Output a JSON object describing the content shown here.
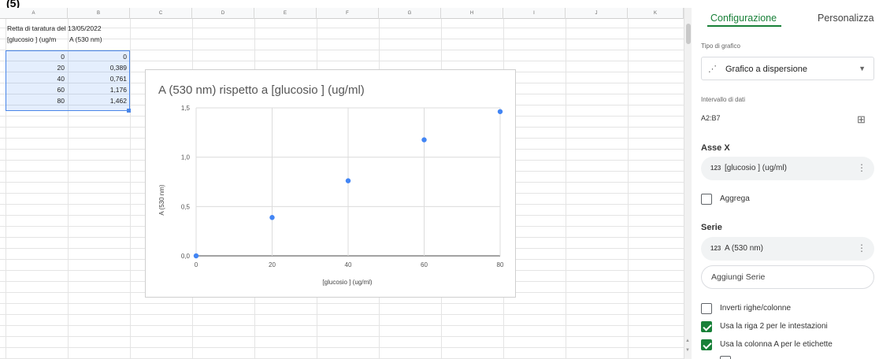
{
  "top_stub": "(5)",
  "sheet": {
    "columns": [
      "A",
      "B",
      "C",
      "D",
      "E",
      "F",
      "G",
      "H",
      "I",
      "J",
      "K"
    ],
    "title_cell": "Retta di taratura del 13/05/2022",
    "header_a": "[glucosio ] (ug/m",
    "header_b": "A (530 nm)",
    "rows": [
      {
        "a": "0",
        "b": "0"
      },
      {
        "a": "20",
        "b": "0,389"
      },
      {
        "a": "40",
        "b": "0,761"
      },
      {
        "a": "60",
        "b": "1,176"
      },
      {
        "a": "80",
        "b": "1,462"
      }
    ]
  },
  "chart_data": {
    "type": "scatter",
    "title": "A (530 nm) rispetto a [glucosio ] (ug/ml)",
    "xlabel": "[glucosio ] (ug/ml)",
    "ylabel": "A (530 nm)",
    "x": [
      0,
      20,
      40,
      60,
      80
    ],
    "y": [
      0,
      0.389,
      0.761,
      1.176,
      1.462
    ],
    "xlim": [
      0,
      80
    ],
    "ylim": [
      0,
      1.5
    ],
    "xticks": [
      "0",
      "20",
      "40",
      "60",
      "80"
    ],
    "yticks": [
      "0,0",
      "0,5",
      "1,0",
      "1,5"
    ],
    "grid": true,
    "point_color": "#4285f4"
  },
  "panel": {
    "tab_setup": "Configurazione",
    "tab_customize": "Personalizza",
    "chart_type_label": "Tipo di grafico",
    "chart_type_value": "Grafico a dispersione",
    "data_range_label": "Intervallo di dati",
    "data_range_value": "A2:B7",
    "x_axis_heading": "Asse X",
    "x_axis_num_icon": "123",
    "x_axis_value": "[glucosio ] (ug/ml)",
    "aggregate_label": "Aggrega",
    "series_heading": "Serie",
    "series_num_icon": "123",
    "series_value": "A (530 nm)",
    "add_series_label": "Aggiungi Serie",
    "switch_rows_cols_label": "Inverti righe/colonne",
    "use_row2_headers_label": "Usa la riga 2 per le intestazioni",
    "use_colA_labels_label": "Usa la colonna A per le etichette",
    "accent_color": "#188038"
  }
}
